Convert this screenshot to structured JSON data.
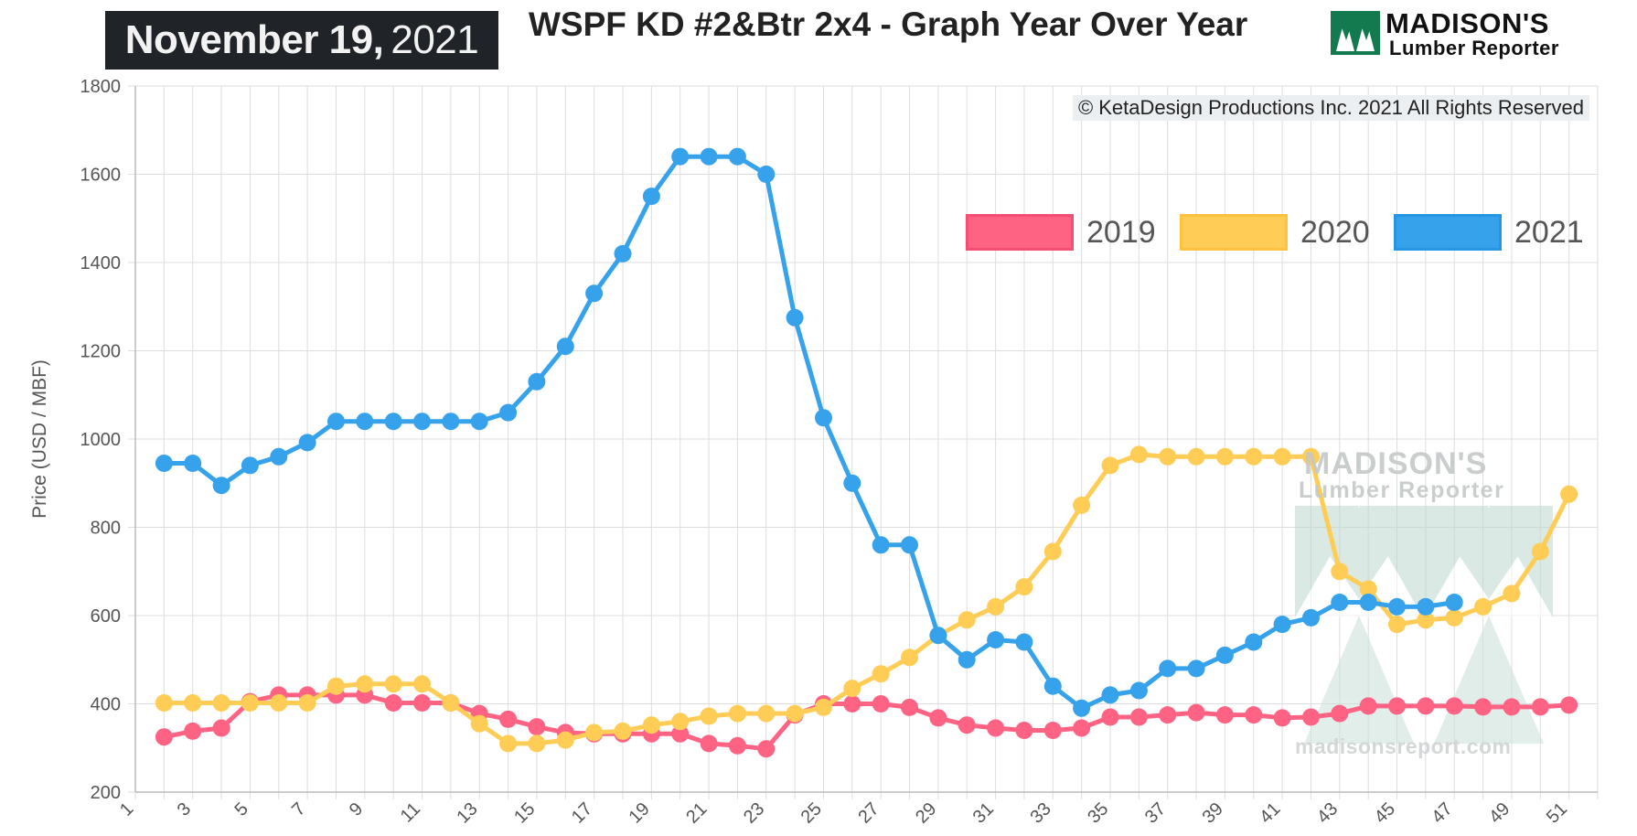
{
  "header": {
    "date_month_day": "November 19,",
    "date_year": "2021",
    "title": "WSPF KD #2&Btr 2x4 - Graph Year Over Year",
    "logo_name": "MADISON'S",
    "logo_sub": "Lumber Reporter",
    "copyright": "© KetaDesign Productions Inc. 2021 All Rights Reserved"
  },
  "watermark": {
    "name": "MADISON'S",
    "sub": "Lumber Reporter",
    "url": "madisonsreport.com"
  },
  "colors": {
    "series_2019": "#ff6384",
    "series_2020": "#ffcd56",
    "series_2021": "#36a2eb",
    "grid": "#dddddd",
    "badge_bg": "#202428",
    "logo_green": "#127a4e"
  },
  "chart_data": {
    "type": "line",
    "title": "WSPF KD #2&Btr 2x4 - Graph Year Over Year",
    "ylabel": "Price (USD / MBF)",
    "xlabel": "",
    "ylim": [
      200,
      1800
    ],
    "yticks": [
      200,
      400,
      600,
      800,
      1000,
      1200,
      1400,
      1600,
      1800
    ],
    "xlim": [
      1,
      52
    ],
    "xtick_labels": [
      "1",
      "3",
      "5",
      "7",
      "9",
      "11",
      "13",
      "15",
      "17",
      "19",
      "21",
      "23",
      "25",
      "27",
      "29",
      "31",
      "33",
      "35",
      "37",
      "39",
      "41",
      "43",
      "45",
      "47",
      "49",
      "51"
    ],
    "grid": true,
    "legend_position": "top-right",
    "series": [
      {
        "name": "2019",
        "color": "#ff6384",
        "x": [
          2,
          3,
          4,
          5,
          6,
          7,
          8,
          9,
          10,
          11,
          12,
          13,
          14,
          15,
          16,
          17,
          18,
          19,
          20,
          21,
          22,
          23,
          24,
          25,
          26,
          27,
          28,
          29,
          30,
          31,
          32,
          33,
          34,
          35,
          36,
          37,
          38,
          39,
          40,
          41,
          42,
          43,
          44,
          45,
          46,
          47,
          48,
          49,
          50,
          51
        ],
        "values": [
          325,
          338,
          345,
          405,
          420,
          420,
          420,
          420,
          402,
          402,
          402,
          378,
          365,
          348,
          335,
          332,
          332,
          332,
          332,
          310,
          305,
          298,
          375,
          400,
          400,
          400,
          392,
          368,
          352,
          345,
          340,
          340,
          345,
          370,
          370,
          375,
          380,
          375,
          375,
          368,
          370,
          378,
          395,
          395,
          395,
          395,
          393,
          393,
          393,
          397
        ]
      },
      {
        "name": "2020",
        "color": "#ffcd56",
        "x": [
          2,
          3,
          4,
          5,
          6,
          7,
          8,
          9,
          10,
          11,
          12,
          13,
          14,
          15,
          16,
          17,
          18,
          19,
          20,
          21,
          22,
          23,
          24,
          25,
          26,
          27,
          28,
          29,
          30,
          31,
          32,
          33,
          34,
          35,
          36,
          37,
          38,
          39,
          40,
          41,
          42,
          43,
          44,
          45,
          46,
          47,
          48,
          49,
          50,
          51
        ],
        "values": [
          402,
          402,
          402,
          402,
          402,
          402,
          440,
          445,
          445,
          445,
          402,
          355,
          310,
          310,
          318,
          335,
          338,
          352,
          360,
          372,
          378,
          378,
          378,
          392,
          435,
          468,
          505,
          555,
          590,
          620,
          665,
          745,
          850,
          940,
          965,
          960,
          960,
          960,
          960,
          960,
          960,
          700,
          660,
          580,
          590,
          595,
          620,
          650,
          745,
          875
        ]
      },
      {
        "name": "2021",
        "color": "#36a2eb",
        "x": [
          2,
          3,
          4,
          5,
          6,
          7,
          8,
          9,
          10,
          11,
          12,
          13,
          14,
          15,
          16,
          17,
          18,
          19,
          20,
          21,
          22,
          23,
          24,
          25,
          26,
          27,
          28,
          29,
          30,
          31,
          32,
          33,
          34,
          35,
          36,
          37,
          38,
          39,
          40,
          41,
          42,
          43,
          44,
          45,
          46,
          47
        ],
        "values": [
          945,
          945,
          895,
          940,
          960,
          992,
          1040,
          1040,
          1040,
          1040,
          1040,
          1040,
          1060,
          1130,
          1210,
          1330,
          1420,
          1550,
          1640,
          1640,
          1640,
          1600,
          1275,
          1048,
          900,
          760,
          760,
          555,
          500,
          545,
          540,
          440,
          390,
          420,
          430,
          480,
          480,
          510,
          540,
          580,
          595,
          630,
          630,
          620,
          620,
          630
        ]
      }
    ]
  }
}
